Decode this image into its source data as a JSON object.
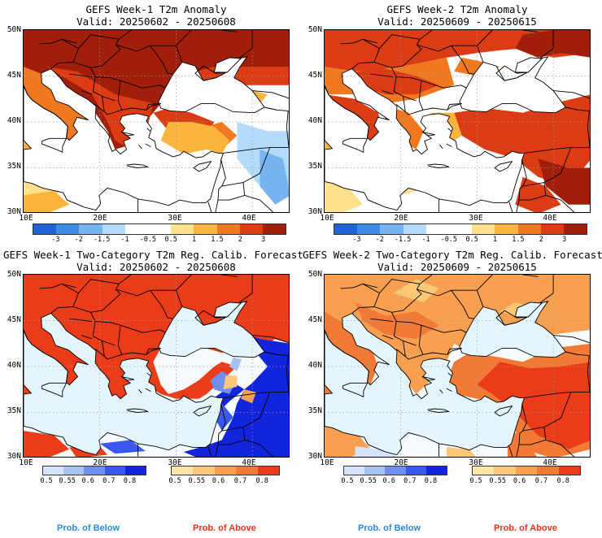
{
  "colors": {
    "anom": [
      "#1e64d8",
      "#3c8ce6",
      "#78b4f0",
      "#b4dcfa",
      "#ffffff",
      "#ffffff",
      "#ffe08c",
      "#fcb43c",
      "#f07820",
      "#dc3c14",
      "#a01e0a"
    ],
    "below": [
      "#d4e4fb",
      "#a8c2f2",
      "#6e8ef0",
      "#3a58f0",
      "#1224dc"
    ],
    "above": [
      "#fde5a8",
      "#fcc878",
      "#f8a050",
      "#f27a34",
      "#ea3c18"
    ],
    "sea": "#e4f6fb",
    "below_text": "#2a8adc",
    "above_text": "#e6321e"
  },
  "panels": [
    {
      "title": "GEFS Week-1 T2m Anomaly",
      "valid": "Valid: 20250602 - 20250608",
      "kind": "anom",
      "y_ticks": [
        "50N",
        "45N",
        "40N",
        "35N",
        "30N"
      ],
      "x_ticks": [
        "10E",
        "20E",
        "30E",
        "40E"
      ],
      "colorbar_labels": [
        "-3",
        "-2",
        "-1.5",
        "-1",
        "-0.5",
        "0.5",
        "1",
        "1.5",
        "2",
        "3"
      ]
    },
    {
      "title": "GEFS Week-2 T2m Anomaly",
      "valid": "Valid: 20250609 - 20250615",
      "kind": "anom",
      "y_ticks": [
        "50N",
        "45N",
        "40N",
        "35N",
        "30N"
      ],
      "x_ticks": [
        "10E",
        "20E",
        "30E",
        "40E"
      ],
      "colorbar_labels": [
        "-3",
        "-2",
        "-1.5",
        "-1",
        "-0.5",
        "0.5",
        "1",
        "1.5",
        "2",
        "3"
      ]
    },
    {
      "title": "GEFS Week-1 Two-Category T2m Reg. Calib. Forecast",
      "valid": "Valid: 20250602 - 20250608",
      "kind": "prob",
      "y_ticks": [
        "50N",
        "45N",
        "40N",
        "35N",
        "30N"
      ],
      "x_ticks": [
        "10E",
        "20E",
        "30E",
        "40E"
      ],
      "below_labels": [
        "0.5",
        "0.55",
        "0.6",
        "0.7",
        "0.8"
      ],
      "above_labels": [
        "0.5",
        "0.55",
        "0.6",
        "0.7",
        "0.8"
      ]
    },
    {
      "title": "GEFS Week-2 Two-Category T2m Reg. Calib. Forecast",
      "valid": "Valid: 20250609 - 20250615",
      "kind": "prob",
      "y_ticks": [
        "50N",
        "45N",
        "40N",
        "35N",
        "30N"
      ],
      "x_ticks": [
        "10E",
        "20E",
        "30E",
        "40E"
      ],
      "below_labels": [
        "0.5",
        "0.55",
        "0.6",
        "0.7",
        "0.8"
      ],
      "above_labels": [
        "0.5",
        "0.55",
        "0.6",
        "0.7",
        "0.8"
      ]
    }
  ],
  "legend": {
    "below": "Prob. of Below",
    "above": "Prob. of Above"
  }
}
